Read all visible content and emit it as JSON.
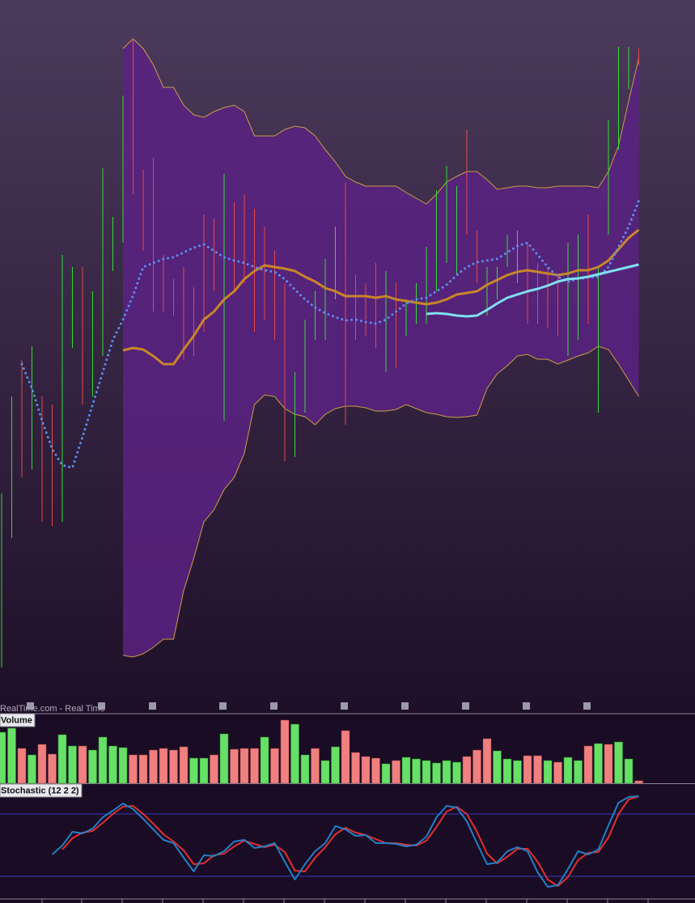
{
  "chart_data": [
    {
      "type": "ohlc",
      "annotation": "RealTime.com - Real Time",
      "ylim": [
        0,
        880
      ],
      "up_color": "#33dd33",
      "down_color": "#e84848",
      "high": [
        270,
        390,
        435,
        452,
        390,
        380,
        565,
        550,
        550,
        520,
        672,
        612,
        762,
        832,
        670,
        685,
        565,
        535,
        550,
        525,
        615,
        610,
        665,
        630,
        640,
        622,
        600,
        570,
        530,
        420,
        485,
        520,
        560,
        600,
        655,
        540,
        530,
        555,
        545,
        530,
        510,
        530,
        575,
        645,
        675,
        650,
        720,
        595,
        550,
        550,
        590,
        595,
        580,
        555,
        550,
        540,
        580,
        590,
        615,
        550,
        732,
        822,
        822,
        820
      ],
      "low": [
        55,
        215,
        290,
        300,
        235,
        230,
        235,
        450,
        380,
        390,
        440,
        545,
        580,
        640,
        570,
        495,
        495,
        490,
        435,
        440,
        470,
        520,
        360,
        520,
        530,
        470,
        485,
        460,
        310,
        315,
        370,
        460,
        460,
        510,
        355,
        460,
        465,
        450,
        420,
        425,
        465,
        480,
        480,
        520,
        555,
        540,
        590,
        530,
        490,
        510,
        550,
        530,
        480,
        480,
        475,
        465,
        440,
        460,
        480,
        370,
        590,
        695,
        770,
        800
      ],
      "up": [
        true,
        true,
        false,
        true,
        false,
        false,
        true,
        true,
        false,
        true,
        true,
        true,
        true,
        false,
        false,
        false,
        false,
        false,
        false,
        false,
        false,
        false,
        true,
        false,
        false,
        false,
        false,
        false,
        false,
        true,
        true,
        true,
        true,
        true,
        false,
        false,
        false,
        false,
        true,
        false,
        true,
        true,
        true,
        true,
        true,
        true,
        false,
        false,
        true,
        true,
        true,
        true,
        false,
        false,
        false,
        false,
        true,
        true,
        false,
        true,
        true,
        true,
        true,
        false
      ],
      "band": {
        "color": "#c8a040",
        "fill": "#5a2282",
        "upper": [
          null,
          null,
          null,
          null,
          null,
          null,
          null,
          null,
          null,
          null,
          null,
          null,
          820,
          832,
          820,
          800,
          772,
          772,
          750,
          738,
          735,
          742,
          747,
          750,
          742,
          712,
          712,
          712,
          720,
          724,
          722,
          712,
          695,
          680,
          662,
          655,
          650,
          650,
          650,
          650,
          642,
          635,
          628,
          640,
          655,
          662,
          668,
          668,
          658,
          646,
          648,
          650,
          650,
          648,
          648,
          650,
          650,
          650,
          650,
          648,
          668,
          700,
          755,
          808
        ],
        "lower": [
          null,
          null,
          null,
          null,
          null,
          null,
          null,
          null,
          null,
          null,
          null,
          null,
          70,
          68,
          72,
          80,
          90,
          90,
          150,
          190,
          235,
          250,
          275,
          290,
          320,
          380,
          392,
          390,
          375,
          368,
          365,
          355,
          368,
          375,
          378,
          378,
          376,
          372,
          372,
          374,
          380,
          375,
          370,
          368,
          365,
          364,
          365,
          367,
          400,
          418,
          428,
          440,
          442,
          436,
          436,
          430,
          435,
          440,
          444,
          452,
          448,
          430,
          410,
          390
        ]
      },
      "series": [
        {
          "color": "#c8862a",
          "style": "solid",
          "width": 3,
          "values": [
            null,
            null,
            null,
            null,
            null,
            null,
            null,
            null,
            null,
            null,
            null,
            null,
            447,
            450,
            448,
            440,
            430,
            430,
            448,
            465,
            485,
            495,
            510,
            520,
            535,
            545,
            552,
            550,
            548,
            545,
            538,
            532,
            524,
            520,
            514,
            514,
            514,
            512,
            514,
            510,
            508,
            506,
            504,
            506,
            510,
            516,
            518,
            520,
            528,
            534,
            540,
            544,
            546,
            544,
            542,
            540,
            542,
            546,
            546,
            550,
            558,
            572,
            586,
            596
          ]
        },
        {
          "color": "#5b8ef0",
          "style": "dotted",
          "width": 3,
          "values": [
            null,
            null,
            430,
            400,
            360,
            325,
            305,
            302,
            340,
            380,
            420,
            460,
            485,
            515,
            550,
            555,
            560,
            562,
            568,
            574,
            578,
            570,
            562,
            558,
            555,
            550,
            546,
            544,
            535,
            522,
            510,
            500,
            493,
            488,
            484,
            485,
            482,
            480,
            485,
            495,
            505,
            510,
            512,
            520,
            528,
            540,
            550,
            556,
            558,
            560,
            568,
            576,
            580,
            565,
            550,
            538,
            532,
            535,
            537,
            538,
            550,
            575,
            600,
            632
          ]
        },
        {
          "color": "#7fe0f0",
          "style": "solid",
          "width": 3,
          "values": [
            null,
            null,
            null,
            null,
            null,
            null,
            null,
            null,
            null,
            null,
            null,
            null,
            null,
            null,
            null,
            null,
            null,
            null,
            null,
            null,
            null,
            null,
            null,
            null,
            null,
            null,
            null,
            null,
            null,
            null,
            null,
            null,
            null,
            null,
            null,
            null,
            null,
            null,
            null,
            null,
            null,
            null,
            492,
            493,
            492,
            490,
            489,
            490,
            497,
            505,
            512,
            516,
            520,
            523,
            527,
            532,
            535,
            536,
            538,
            541,
            544,
            547,
            550,
            553
          ]
        }
      ]
    },
    {
      "type": "bar",
      "title": "Volume",
      "ylim": [
        0,
        86
      ],
      "up_color": "#66e066",
      "down_color": "#f08080",
      "values": [
        63,
        68,
        43,
        35,
        48,
        36,
        60,
        46,
        46,
        41,
        57,
        46,
        44,
        35,
        35,
        41,
        43,
        41,
        45,
        31,
        31,
        35,
        61,
        42,
        43,
        43,
        57,
        43,
        78,
        73,
        35,
        43,
        28,
        45,
        65,
        38,
        33,
        31,
        24,
        28,
        32,
        30,
        28,
        25,
        28,
        26,
        33,
        41,
        55,
        40,
        30,
        28,
        34,
        34,
        28,
        26,
        32,
        28,
        46,
        49,
        48,
        51,
        30,
        3
      ],
      "up": [
        true,
        true,
        false,
        true,
        false,
        false,
        true,
        true,
        false,
        true,
        true,
        true,
        true,
        false,
        false,
        false,
        false,
        false,
        false,
        true,
        true,
        false,
        true,
        false,
        false,
        false,
        true,
        false,
        false,
        true,
        true,
        false,
        true,
        true,
        false,
        false,
        false,
        false,
        true,
        false,
        true,
        true,
        true,
        true,
        true,
        true,
        false,
        false,
        false,
        true,
        true,
        true,
        false,
        false,
        true,
        false,
        true,
        true,
        false,
        true,
        false,
        true,
        true,
        false
      ]
    },
    {
      "type": "line",
      "title": "Stochastic (12 2 2)",
      "ylim": [
        0,
        140
      ],
      "levels": [
        104,
        27
      ],
      "level_color": "#3838c0",
      "series": [
        {
          "color": "#e03030",
          "values": [
            null,
            null,
            null,
            null,
            null,
            null,
            60,
            74,
            81,
            83,
            93,
            104,
            113,
            114,
            104,
            92,
            79,
            70,
            59,
            42,
            43,
            53,
            55,
            64,
            71,
            67,
            63,
            66,
            57,
            34,
            33,
            50,
            63,
            79,
            87,
            81,
            78,
            73,
            68,
            68,
            66,
            65,
            71,
            88,
            107,
            113,
            104,
            82,
            55,
            43,
            51,
            61,
            61,
            45,
            23,
            15,
            26,
            47,
            56,
            57,
            75,
            104,
            122,
            126
          ]
        },
        {
          "color": "#2080c8",
          "values": [
            null,
            null,
            null,
            null,
            null,
            54,
            65,
            82,
            80,
            86,
            100,
            108,
            117,
            110,
            98,
            85,
            72,
            68,
            50,
            33,
            53,
            52,
            58,
            70,
            72,
            62,
            64,
            68,
            45,
            23,
            42,
            58,
            68,
            89,
            85,
            77,
            78,
            68,
            68,
            67,
            64,
            66,
            76,
            100,
            114,
            112,
            95,
            68,
            42,
            44,
            58,
            63,
            58,
            32,
            14,
            16,
            36,
            58,
            54,
            60,
            90,
            118,
            125,
            126
          ]
        }
      ]
    }
  ]
}
